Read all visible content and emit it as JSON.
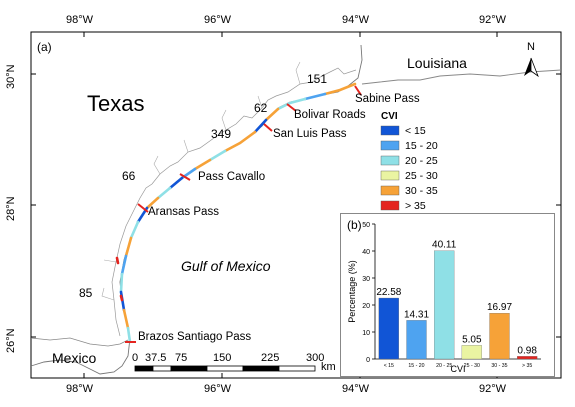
{
  "figure": {
    "panel_a_label": "(a)",
    "panel_b_label": "(b)",
    "top_lon_ticks": [
      "98°W",
      "96°W",
      "94°W",
      "92°W"
    ],
    "bottom_lon_ticks": [
      "98°W",
      "96°W",
      "94°W",
      "92°W"
    ],
    "lat_ticks": [
      "30°N",
      "28°N",
      "26°N"
    ],
    "north_arrow": {
      "letter": "N",
      "icon": "north-arrow-icon"
    },
    "regions": {
      "texas": "Texas",
      "louisiana": "Louisiana",
      "mexico": "Mexico",
      "gulf": "Gulf of Mexico"
    },
    "passes": [
      "Sabine Pass",
      "Bolivar Roads",
      "San Luis Pass",
      "Pass Cavallo",
      "Aransas Pass",
      "Brazos Santiago Pass"
    ],
    "segment_counts": [
      "151",
      "62",
      "349",
      "66",
      "85"
    ],
    "scale_bar": {
      "labels": [
        "0",
        "37.5",
        "75",
        "150",
        "225",
        "300"
      ],
      "unit": "km"
    },
    "legend": {
      "title": "CVI",
      "items": [
        {
          "label": "< 15",
          "color": "#1155d6"
        },
        {
          "label": "15 - 20",
          "color": "#4ea3f0"
        },
        {
          "label": "20 - 25",
          "color": "#8fe0e6"
        },
        {
          "label": "25 - 30",
          "color": "#eaf4a2"
        },
        {
          "label": "30 - 35",
          "color": "#f6a238"
        },
        {
          "label": "> 35",
          "color": "#e4241f"
        }
      ]
    }
  },
  "chart_data": {
    "type": "bar",
    "categories": [
      "< 15",
      "15 - 20",
      "20 - 25",
      "25 - 30",
      "30 - 35",
      "> 35"
    ],
    "values": [
      22.58,
      14.31,
      40.11,
      5.05,
      16.97,
      0.98
    ],
    "value_labels": [
      "22.58",
      "14.31",
      "40.11",
      "5.05",
      "16.97",
      "0.98"
    ],
    "colors": [
      "#1155d6",
      "#4ea3f0",
      "#8fe0e6",
      "#eaf4a2",
      "#f6a238",
      "#e4241f"
    ],
    "xlabel": "CVI",
    "ylabel": "Percentage (%)",
    "yticks": [
      "0",
      "10",
      "20",
      "30",
      "40",
      "50"
    ],
    "ylim": [
      0,
      50
    ]
  }
}
